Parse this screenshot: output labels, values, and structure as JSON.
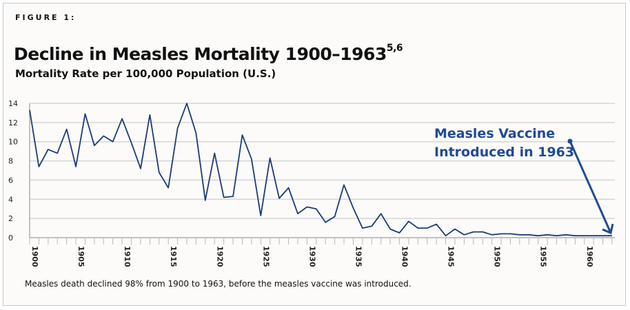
{
  "figure_label": "FIGURE 1:",
  "title": "Decline in Measles Mortality 1900–1963",
  "title_superscript": "5,6",
  "subtitle": "Mortality Rate per 100,000 Population (U.S.)",
  "footnote": "Measles death declined 98% from 1900 to 1963, before the measles vaccine was introduced.",
  "colors": {
    "line": "#1c3a78",
    "annotation": "#1f4a96",
    "grid": "#d6d6d6",
    "background": "#fcfbf9"
  },
  "chart_data": {
    "type": "line",
    "title": "Decline in Measles Mortality 1900–1963",
    "ylabel": "Mortality Rate per 100,000 Population (U.S.)",
    "xlabel": "",
    "ylim": [
      0,
      14
    ],
    "yticks": [
      "0",
      "2",
      "4",
      "6",
      "8",
      "10",
      "12",
      "14"
    ],
    "xlim": [
      1900,
      1963
    ],
    "xticks": [
      "1900",
      "1905",
      "1910",
      "1915",
      "1920",
      "1925",
      "1930",
      "1935",
      "1940",
      "1945",
      "1950",
      "1955",
      "1960"
    ],
    "grid": true,
    "x": [
      1900,
      1901,
      1902,
      1903,
      1904,
      1905,
      1906,
      1907,
      1908,
      1909,
      1910,
      1911,
      1912,
      1913,
      1914,
      1915,
      1916,
      1917,
      1918,
      1919,
      1920,
      1921,
      1922,
      1923,
      1924,
      1925,
      1926,
      1927,
      1928,
      1929,
      1930,
      1931,
      1932,
      1933,
      1934,
      1935,
      1936,
      1937,
      1938,
      1939,
      1940,
      1941,
      1942,
      1943,
      1944,
      1945,
      1946,
      1947,
      1948,
      1949,
      1950,
      1951,
      1952,
      1953,
      1954,
      1955,
      1956,
      1957,
      1958,
      1959,
      1960,
      1961,
      1962,
      1963
    ],
    "values": [
      13.3,
      7.4,
      9.2,
      8.8,
      11.3,
      7.4,
      12.9,
      9.6,
      10.6,
      10.0,
      12.4,
      9.9,
      7.2,
      12.8,
      6.8,
      5.2,
      11.4,
      14.0,
      10.9,
      3.9,
      8.8,
      4.2,
      4.3,
      10.7,
      8.2,
      2.3,
      8.3,
      4.1,
      5.2,
      2.5,
      3.2,
      3.0,
      1.6,
      2.2,
      5.5,
      3.1,
      1.0,
      1.2,
      2.5,
      0.9,
      0.5,
      1.7,
      1.0,
      1.0,
      1.4,
      0.2,
      0.9,
      0.3,
      0.6,
      0.6,
      0.3,
      0.4,
      0.4,
      0.3,
      0.3,
      0.2,
      0.3,
      0.2,
      0.3,
      0.2,
      0.2,
      0.2,
      0.2,
      0.2
    ],
    "annotation": {
      "lines": [
        "Measles Vaccine",
        "Introduced in 1963"
      ],
      "points_to": 1963
    }
  }
}
